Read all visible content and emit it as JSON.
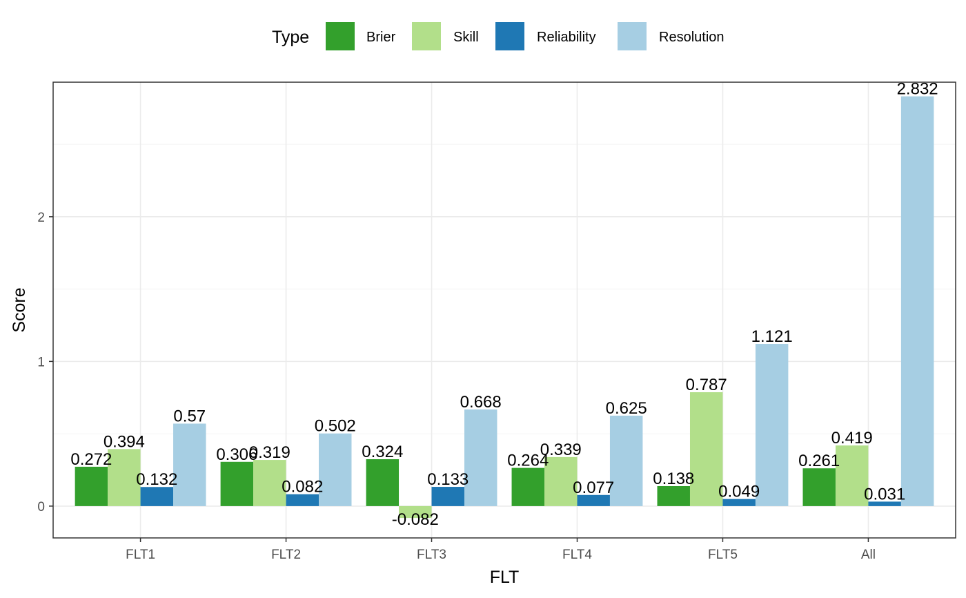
{
  "chart_data": {
    "type": "bar",
    "categories": [
      "FLT1",
      "FLT2",
      "FLT3",
      "FLT4",
      "FLT5",
      "All"
    ],
    "series": [
      {
        "name": "Brier",
        "color": "#33a02c",
        "values": [
          0.272,
          0.306,
          0.324,
          0.264,
          0.138,
          0.261
        ],
        "labels": [
          "0.272",
          "0.306",
          "0.324",
          "0.264",
          "0.138",
          "0.261"
        ]
      },
      {
        "name": "Skill",
        "color": "#b2df8a",
        "values": [
          0.394,
          0.319,
          -0.082,
          0.339,
          0.787,
          0.419
        ],
        "labels": [
          "0.394",
          "0.319",
          "-0.082",
          "0.339",
          "0.787",
          "0.419"
        ]
      },
      {
        "name": "Reliability",
        "color": "#1f78b4",
        "values": [
          0.132,
          0.082,
          0.133,
          0.077,
          0.049,
          0.031
        ],
        "labels": [
          "0.132",
          "0.082",
          "0.133",
          "0.077",
          "0.049",
          "0.031"
        ]
      },
      {
        "name": "Resolution",
        "color": "#a6cee3",
        "values": [
          0.57,
          0.502,
          0.668,
          0.625,
          1.121,
          2.832
        ],
        "labels": [
          "0.57",
          "0.502",
          "0.668",
          "0.625",
          "1.121",
          "2.832"
        ]
      }
    ],
    "xlabel": "FLT",
    "ylabel": "Score",
    "ylim": [
      -0.22,
      2.93
    ],
    "yticks": [
      0,
      1,
      2
    ],
    "ytick_labels": [
      "0",
      "1",
      "2"
    ],
    "legend": {
      "title": "Type",
      "position": "top"
    },
    "grid": true
  }
}
